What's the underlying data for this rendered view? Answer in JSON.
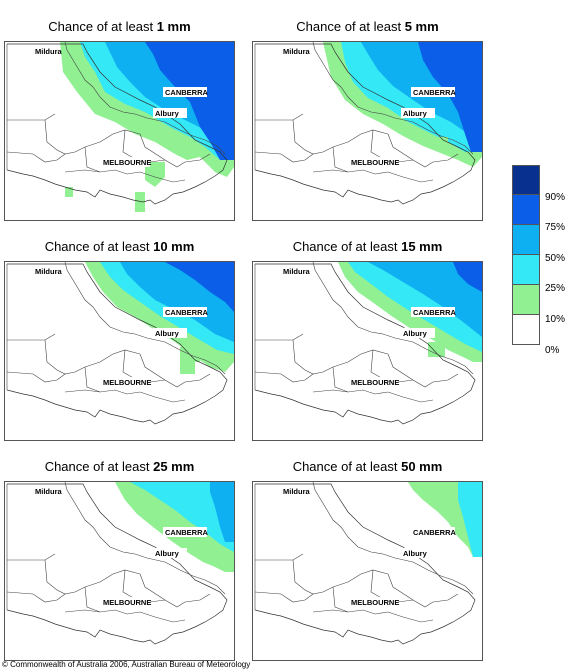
{
  "title_prefix": "Chance of at least",
  "panels": [
    {
      "threshold": "1 mm"
    },
    {
      "threshold": "5 mm"
    },
    {
      "threshold": "10 mm"
    },
    {
      "threshold": "15 mm"
    },
    {
      "threshold": "25 mm"
    },
    {
      "threshold": "50 mm"
    }
  ],
  "place_labels": {
    "mildura": "Mildura",
    "canberra": "CANBERRA",
    "albury": "Albury",
    "melbourne": "MELBOURNE"
  },
  "legend": {
    "ticks": [
      "90%",
      "75%",
      "50%",
      "25%",
      "10%",
      "0%"
    ],
    "colors": [
      "#08308e",
      "#0a5ee8",
      "#0fb0f2",
      "#34e8f6",
      "#90f092",
      "#ffffff"
    ]
  },
  "copyright": "© Commonwealth of Australia 2006, Australian Bureau of Meteorology"
}
